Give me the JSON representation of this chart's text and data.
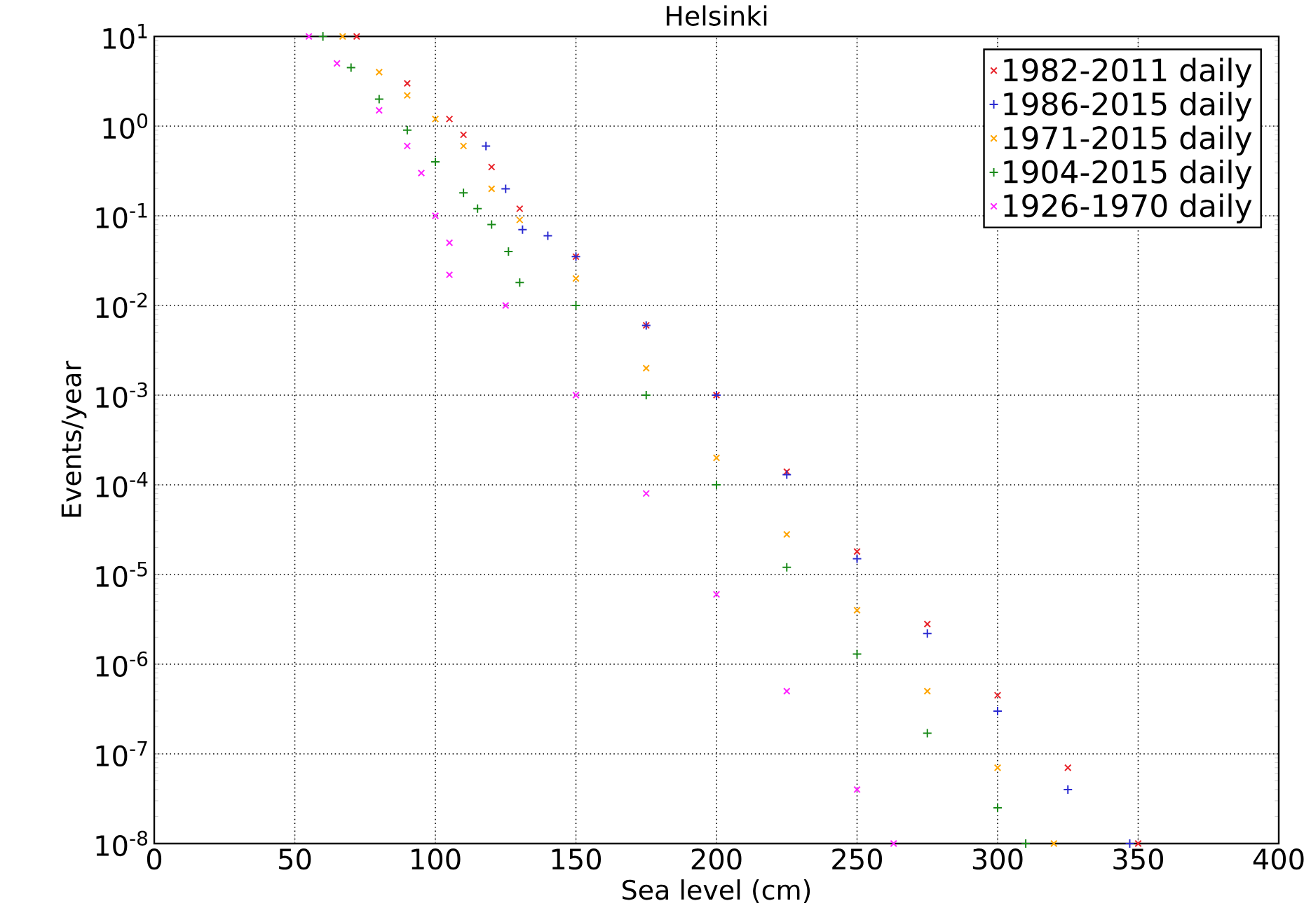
{
  "chart_data": {
    "type": "scatter",
    "title": "Helsinki",
    "xlabel": "Sea level (cm)",
    "ylabel": "Events/year",
    "xlim": [
      0,
      400
    ],
    "xticks": [
      0,
      50,
      100,
      150,
      200,
      250,
      300,
      350,
      400
    ],
    "ylim": [
      1e-08,
      10
    ],
    "yticks": [
      {
        "value": 1e-08,
        "label": "10$^{-8}$"
      },
      {
        "value": 1e-07,
        "label": "10$^{-7}$"
      },
      {
        "value": 1e-06,
        "label": "10$^{-6}$"
      },
      {
        "value": 1e-05,
        "label": "10$^{-5}$"
      },
      {
        "value": 0.0001,
        "label": "10$^{-4}$"
      },
      {
        "value": 0.001,
        "label": "10$^{-3}$"
      },
      {
        "value": 0.01,
        "label": "10$^{-2}$"
      },
      {
        "value": 0.1,
        "label": "10$^{-1}$"
      },
      {
        "value": 1,
        "label": "10$^{0}$"
      },
      {
        "value": 10,
        "label": "10$^{1}$"
      }
    ],
    "log": "y",
    "grid": true,
    "legend": "top right",
    "series": [
      {
        "name": "1982-2011 daily",
        "color": "#e8232a",
        "marker": "cross",
        "x": [
          72,
          90,
          105,
          110,
          120,
          130,
          150,
          175,
          200,
          225,
          250,
          275,
          300,
          325,
          350
        ],
        "values": [
          10,
          3,
          1.2,
          0.8,
          0.35,
          0.12,
          0.035,
          0.006,
          0.001,
          0.00014,
          1.8e-05,
          2.8e-06,
          4.5e-07,
          7e-08,
          1e-08
        ]
      },
      {
        "name": "1986-2015 daily",
        "color": "#2a2ad0",
        "marker": "plus",
        "x": [
          118,
          125,
          131,
          140,
          150,
          175,
          200,
          225,
          250,
          275,
          300,
          325,
          347
        ],
        "values": [
          0.6,
          0.2,
          0.07,
          0.06,
          0.035,
          0.006,
          0.001,
          0.00013,
          1.5e-05,
          2.2e-06,
          3e-07,
          4e-08,
          1e-08
        ]
      },
      {
        "name": "1971-2015 daily",
        "color": "#ffa500",
        "marker": "cross",
        "x": [
          67,
          80,
          90,
          100,
          110,
          120,
          130,
          150,
          175,
          200,
          225,
          250,
          275,
          300,
          320
        ],
        "values": [
          10,
          4,
          2.2,
          1.2,
          0.6,
          0.2,
          0.09,
          0.02,
          0.002,
          0.0002,
          2.8e-05,
          4e-06,
          5e-07,
          7e-08,
          1e-08
        ]
      },
      {
        "name": "1904-2015 daily",
        "color": "#1a8a1a",
        "marker": "plus",
        "x": [
          60,
          70,
          80,
          90,
          100,
          110,
          115,
          120,
          126,
          130,
          150,
          175,
          200,
          225,
          250,
          275,
          300,
          310
        ],
        "values": [
          10,
          4.5,
          2,
          0.9,
          0.4,
          0.18,
          0.12,
          0.08,
          0.04,
          0.018,
          0.01,
          0.001,
          0.0001,
          1.2e-05,
          1.3e-06,
          1.7e-07,
          2.5e-08,
          1e-08
        ]
      },
      {
        "name": "1926-1970 daily",
        "color": "#ff22ff",
        "marker": "cross",
        "x": [
          55,
          65,
          80,
          90,
          95,
          100,
          105,
          105,
          125,
          150,
          175,
          200,
          225,
          250,
          263
        ],
        "values": [
          10,
          5,
          1.5,
          0.6,
          0.3,
          0.1,
          0.05,
          0.022,
          0.01,
          0.001,
          8e-05,
          6e-06,
          5e-07,
          4e-08,
          1e-08
        ]
      }
    ]
  }
}
